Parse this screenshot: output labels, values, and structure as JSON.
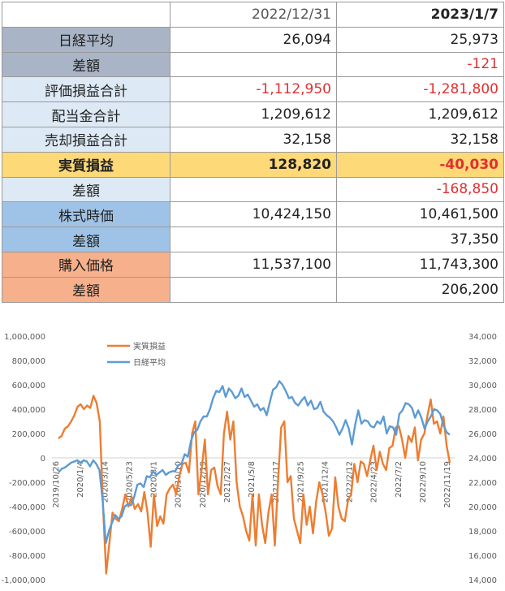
{
  "table": {
    "headers": [
      "",
      "2022/12/31",
      "2023/1/7"
    ],
    "rows": [
      {
        "label": "日経平均",
        "v1": "26,094",
        "v2": "25,973",
        "bg": "#a9b4c6"
      },
      {
        "label": "差額",
        "v1": "",
        "v2": "-121",
        "bg": "#a9b4c6"
      },
      {
        "label": "評価損益合計",
        "v1": "-1,112,950",
        "v2": "-1,281,800",
        "bg": "#dde9f5"
      },
      {
        "label": "配当金合計",
        "v1": "1,209,612",
        "v2": "1,209,612",
        "bg": "#dde9f5"
      },
      {
        "label": "売却損益合計",
        "v1": "32,158",
        "v2": "32,158",
        "bg": "#dde9f5"
      },
      {
        "label": "実質損益",
        "v1": "128,820",
        "v2": "-40,030",
        "bg": "#fdd978"
      },
      {
        "label": "差額",
        "v1": "",
        "v2": "-168,850",
        "bg": "#dde9f5"
      },
      {
        "label": "株式時価",
        "v1": "10,424,150",
        "v2": "10,461,500",
        "bg": "#9fc3e6"
      },
      {
        "label": "差額",
        "v1": "",
        "v2": "37,350",
        "bg": "#9fc3e6"
      },
      {
        "label": "購入価格",
        "v1": "11,537,100",
        "v2": "11,743,300",
        "bg": "#f6b08b"
      },
      {
        "label": "差額",
        "v1": "",
        "v2": "206,200",
        "bg": "#f6b08b"
      }
    ],
    "colors": {
      "negative": "#e03030",
      "header_bg": "#ffffff"
    }
  },
  "chart_data": {
    "type": "line",
    "title": "",
    "xlabel": "",
    "ylabel": "",
    "legend_position": "top-left",
    "x_tick_labels": [
      "2019/10/26",
      "2020/1/4",
      "2020/3/14",
      "2020/5/23",
      "2020/8/1",
      "2020/10/10",
      "2020/12/19",
      "2021/2/27",
      "2021/5/8",
      "2021/7/17",
      "2021/9/25",
      "2021/12/4",
      "2022/2/12",
      "2022/4/23",
      "2022/7/2",
      "2022/9/10",
      "2022/11/19"
    ],
    "y_left_ticks": [
      "1,000,000",
      "800,000",
      "600,000",
      "400,000",
      "200,000",
      "0",
      "-200,000",
      "-400,000",
      "-600,000",
      "-800,000",
      "-1,000,000"
    ],
    "y_right_ticks": [
      "34,000",
      "32,000",
      "30,000",
      "28,000",
      "26,000",
      "24,000",
      "22,000",
      "20,000",
      "18,000",
      "16,000",
      "14,000"
    ],
    "ylim_left": [
      -1000000,
      1000000
    ],
    "ylim_right": [
      14000,
      34000
    ],
    "grid": false,
    "series": [
      {
        "name": "実質損益",
        "axis": "left",
        "color": "#ed7d31",
        "values": [
          160000,
          180000,
          240000,
          260000,
          300000,
          350000,
          420000,
          440000,
          400000,
          430000,
          410000,
          510000,
          450000,
          300000,
          -400000,
          -950000,
          -700000,
          -450000,
          -500000,
          -520000,
          -420000,
          -300000,
          -400000,
          -320000,
          -420000,
          -380000,
          -440000,
          -280000,
          -450000,
          -730000,
          -300000,
          -560000,
          -480000,
          -540000,
          -300000,
          -250000,
          -220000,
          -300000,
          -150000,
          -50000,
          -40000,
          -120000,
          200000,
          300000,
          -300000,
          -100000,
          150000,
          -300000,
          -100000,
          -80000,
          -230000,
          -300000,
          200000,
          380000,
          150000,
          300000,
          -200000,
          -400000,
          -480000,
          -600000,
          -680000,
          -300000,
          -720000,
          -300000,
          -550000,
          -700000,
          -450000,
          -300000,
          -720000,
          -200000,
          250000,
          300000,
          -200000,
          -150000,
          -500000,
          -600000,
          -700000,
          -300000,
          -550000,
          -400000,
          -620000,
          -360000,
          -200000,
          -300000,
          -450000,
          -640000,
          -580000,
          -160000,
          -400000,
          -500000,
          -520000,
          -350000,
          -300000,
          -50000,
          -200000,
          -30000,
          -50000,
          -150000,
          -20000,
          100000,
          -100000,
          50000,
          -50000,
          -100000,
          80000,
          100000,
          250000,
          260000,
          150000,
          0,
          180000,
          130000,
          250000,
          -20000,
          150000,
          200000,
          350000,
          480000,
          280000,
          300000,
          200000,
          340000,
          100000,
          -40000
        ]
      },
      {
        "name": "日経平均",
        "axis": "right",
        "color": "#5b9bd5",
        "values": [
          22800,
          23100,
          23200,
          23400,
          23600,
          23700,
          23800,
          23600,
          23800,
          23700,
          23300,
          23800,
          23500,
          23000,
          20500,
          17000,
          18000,
          18700,
          19300,
          19000,
          19200,
          20000,
          20200,
          20100,
          20800,
          21800,
          21900,
          21600,
          22500,
          22400,
          22900,
          22600,
          22800,
          23000,
          22600,
          22800,
          22900,
          22900,
          23400,
          23500,
          24300,
          24100,
          25400,
          26100,
          26300,
          27000,
          27400,
          27400,
          28000,
          28900,
          29500,
          29400,
          29900,
          29000,
          29700,
          29400,
          28900,
          29100,
          29700,
          29000,
          29200,
          28700,
          28200,
          28400,
          27900,
          28100,
          27500,
          28600,
          29600,
          29800,
          30300,
          30000,
          29500,
          28900,
          29000,
          28500,
          28300,
          28700,
          29000,
          28300,
          28700,
          28000,
          28100,
          28600,
          27800,
          27500,
          27300,
          27000,
          26500,
          25900,
          26400,
          27100,
          26400,
          25100,
          26700,
          27900,
          26800,
          27100,
          27000,
          26600,
          26500,
          27000,
          26800,
          27400,
          26000,
          26600,
          26500,
          25900,
          27600,
          27900,
          28500,
          28400,
          28100,
          27300,
          27900,
          27300,
          26400,
          27000,
          27400,
          28000,
          27900,
          27600,
          26700,
          26100,
          25900
        ]
      }
    ]
  }
}
